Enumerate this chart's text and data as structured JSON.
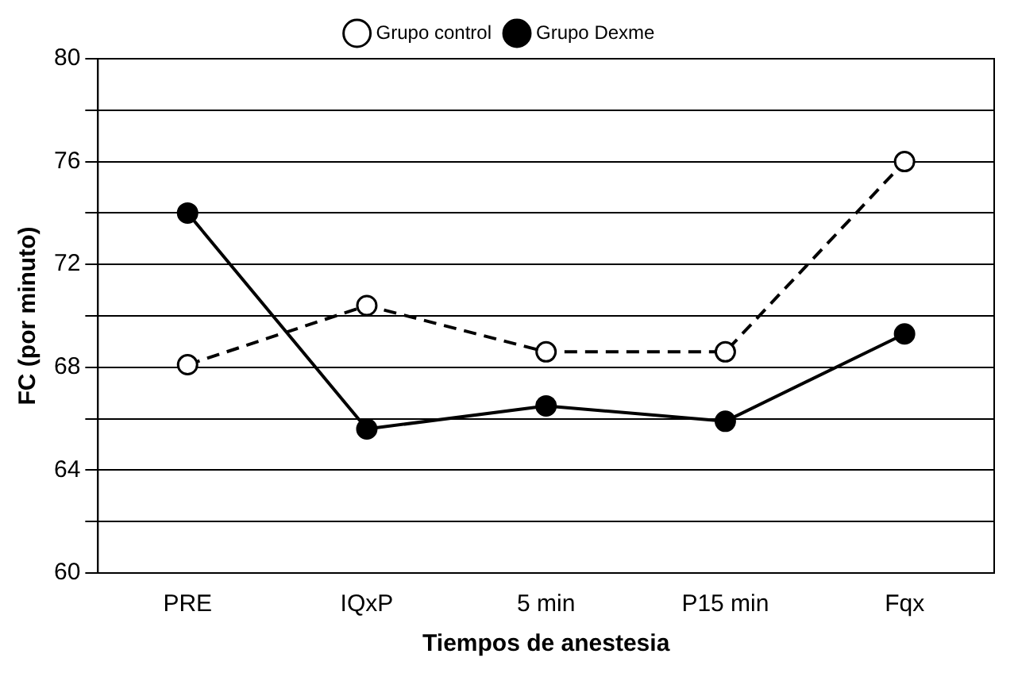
{
  "chart_data": {
    "type": "line",
    "xlabel": "Tiempos de anestesia",
    "ylabel": "FC (por minuto)",
    "categories": [
      "PRE",
      "IQxP",
      "5 min",
      "P15 min",
      "Fqx"
    ],
    "series": [
      {
        "name": "Grupo control",
        "color": "#000000",
        "line_style": "dashed",
        "values": [
          68.1,
          70.4,
          68.6,
          68.6,
          76
        ]
      },
      {
        "name": "Grupo Dexme",
        "color": "#000000",
        "line_style": "solid",
        "values": [
          74,
          65.6,
          66.5,
          65.9,
          69.3
        ]
      }
    ],
    "ylim": [
      60,
      80
    ],
    "yticks": [
      60,
      {
        "value": 62,
        "label": null
      },
      64,
      {
        "value": 66,
        "label": null
      },
      68,
      {
        "value": 70,
        "label": null
      },
      72,
      {
        "value": 74,
        "label": null
      },
      76,
      {
        "value": 78,
        "label": null
      },
      80
    ],
    "grid": "y",
    "legend": "top",
    "marker": "circle"
  }
}
